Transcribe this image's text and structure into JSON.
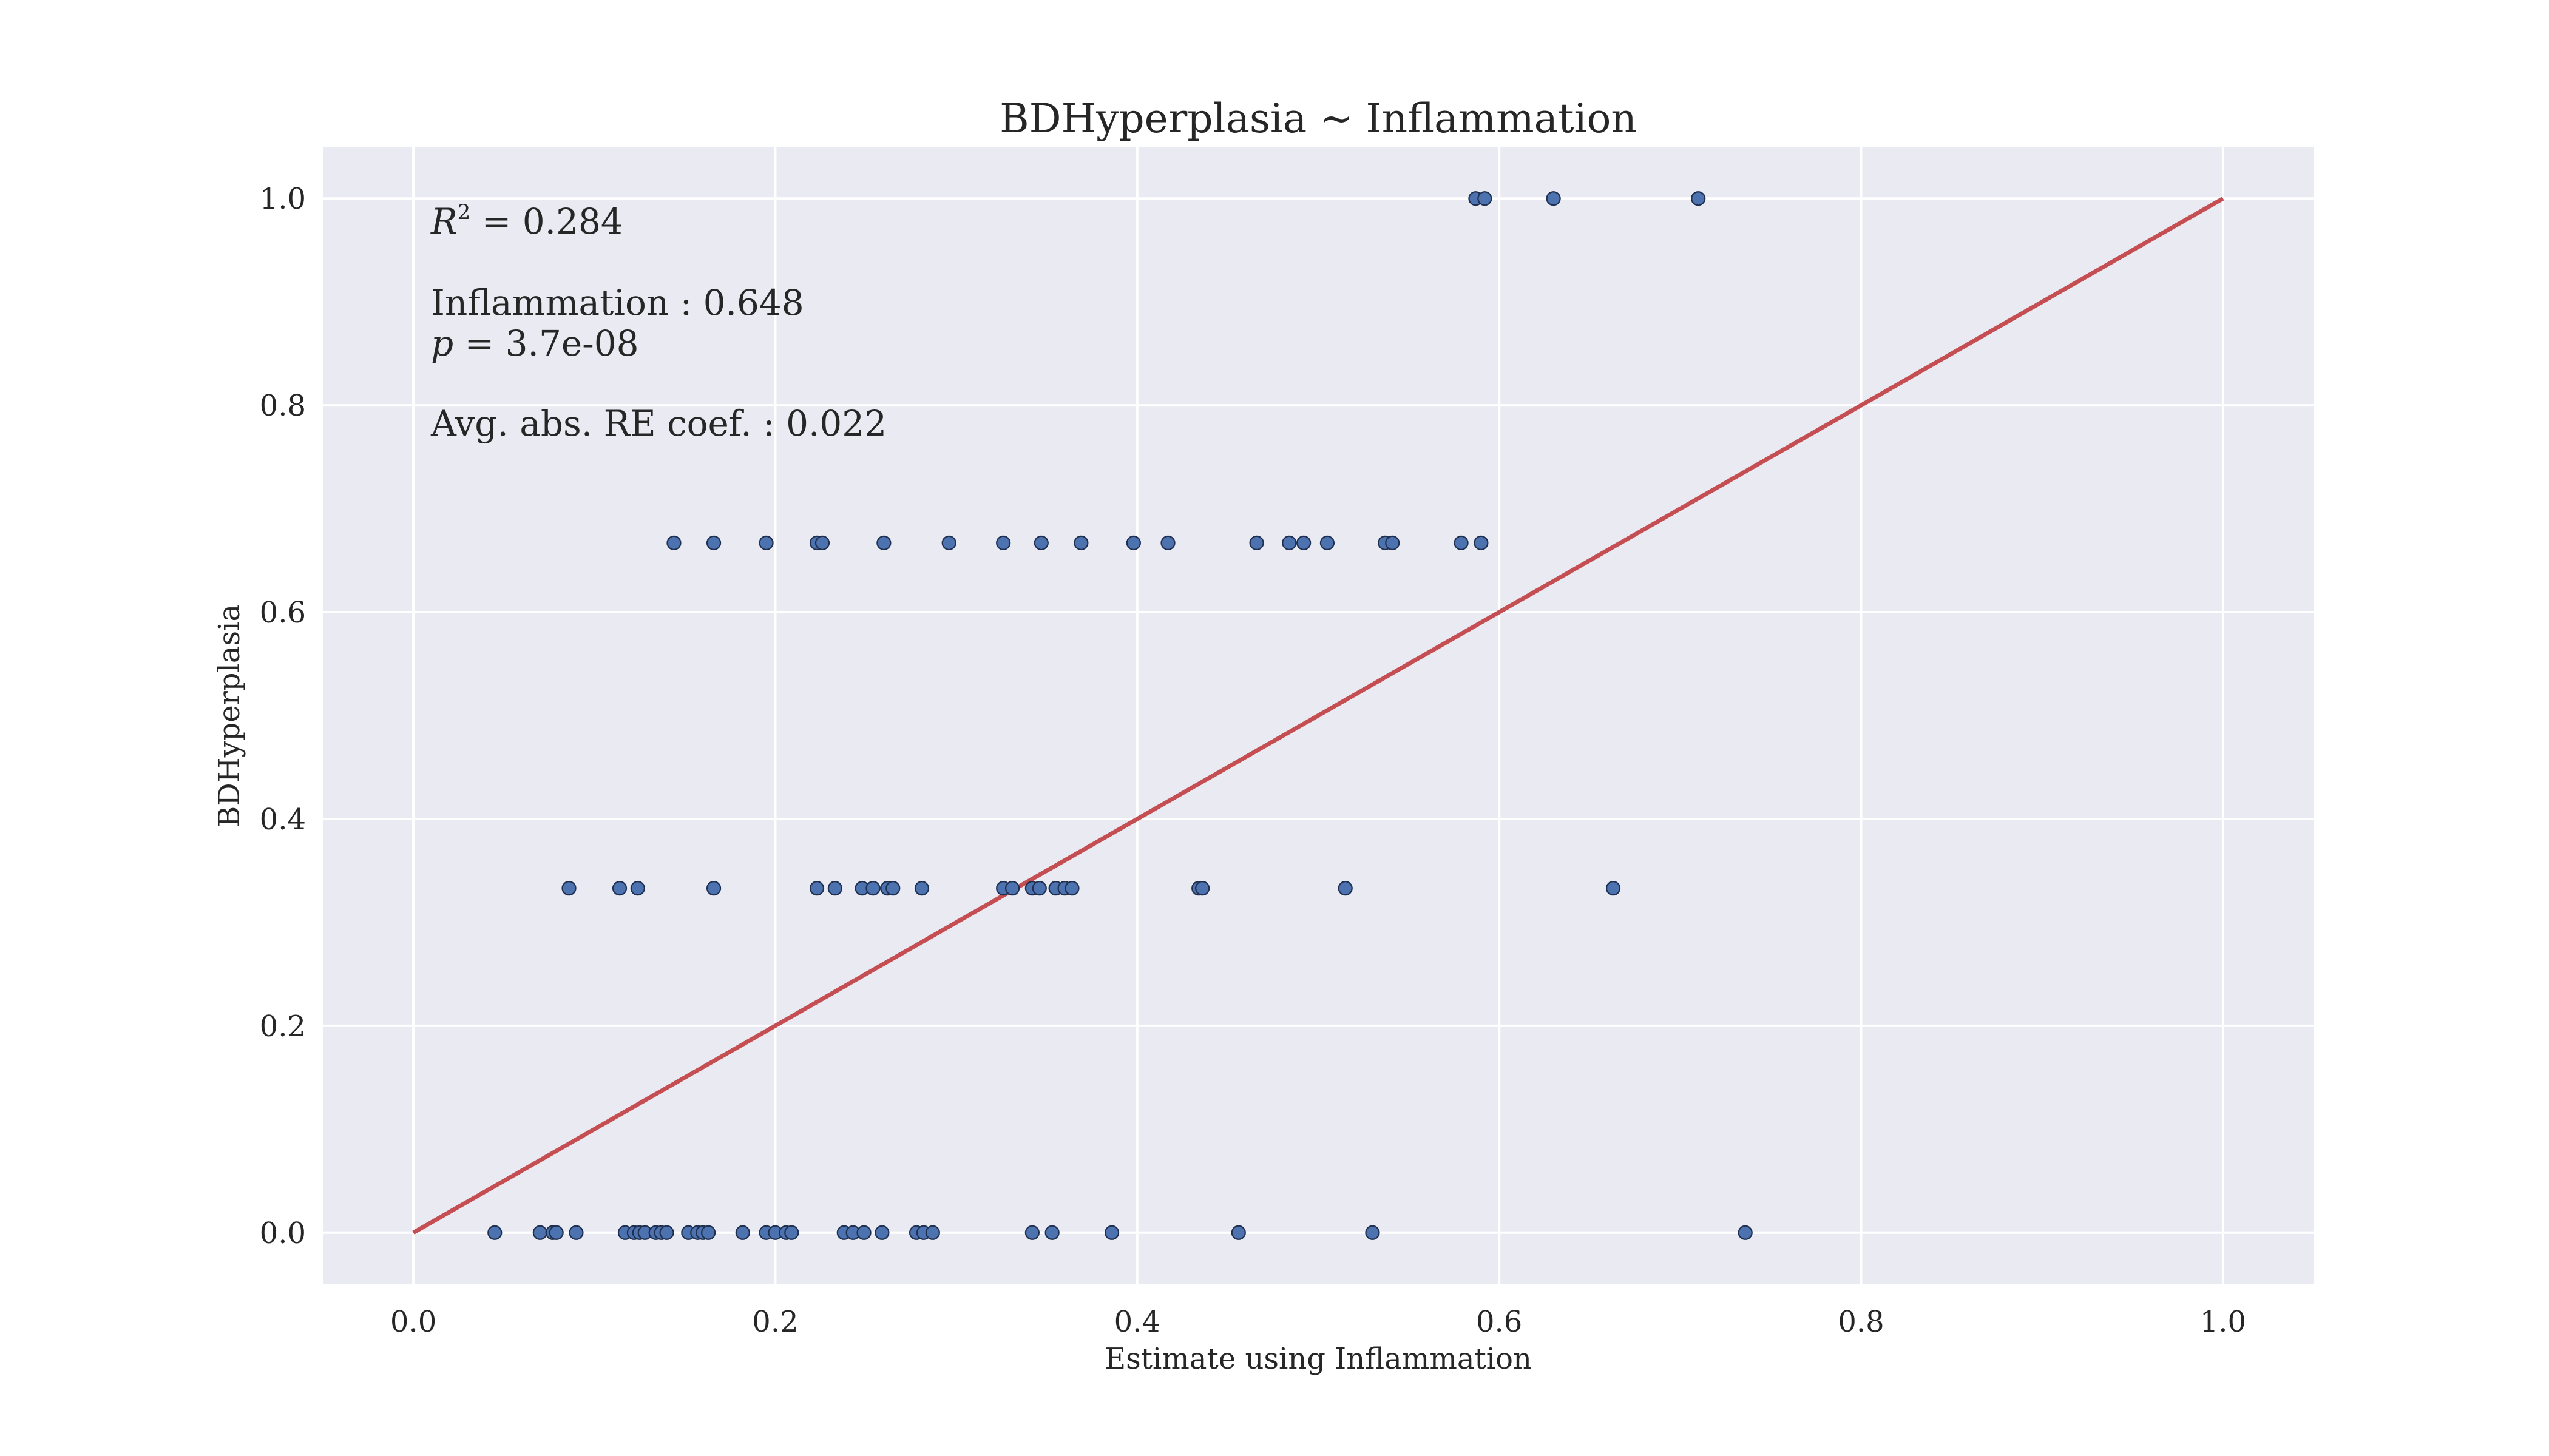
{
  "chart_data": {
    "type": "scatter",
    "title": "BDHyperplasia ~ Inflammation",
    "xlabel": "Estimate using Inflammation",
    "ylabel": "BDHyperplasia",
    "xlim": [
      -0.05,
      1.05
    ],
    "ylim": [
      -0.05,
      1.05
    ],
    "xticks": [
      0.0,
      0.2,
      0.4,
      0.6,
      0.8,
      1.0
    ],
    "yticks": [
      0.0,
      0.2,
      0.4,
      0.6,
      0.8,
      1.0
    ],
    "xtick_labels": [
      "0.0",
      "0.2",
      "0.4",
      "0.6",
      "0.8",
      "1.0"
    ],
    "ytick_labels": [
      "0.0",
      "0.2",
      "0.4",
      "0.6",
      "0.8",
      "1.0"
    ],
    "grid": true,
    "background_color": "#EAEAF2",
    "point_color": "#4C72B0",
    "line_color": "#C44E52",
    "fit_line": {
      "x": [
        0.0,
        1.0
      ],
      "y": [
        0.0,
        1.0
      ]
    },
    "annotations": {
      "r2_symbol": "R",
      "r2_exponent": "2",
      "r2_value": " = 0.284",
      "coef": "Inflammation : 0.648",
      "p_symbol": "p",
      "p_value": " = 3.7e-08",
      "re_coef": "Avg. abs. RE coef. : 0.022"
    },
    "points": [
      {
        "x": 0.045,
        "y": 0.0
      },
      {
        "x": 0.07,
        "y": 0.0
      },
      {
        "x": 0.077,
        "y": 0.0
      },
      {
        "x": 0.079,
        "y": 0.0
      },
      {
        "x": 0.09,
        "y": 0.0
      },
      {
        "x": 0.117,
        "y": 0.0
      },
      {
        "x": 0.122,
        "y": 0.0
      },
      {
        "x": 0.125,
        "y": 0.0
      },
      {
        "x": 0.128,
        "y": 0.0
      },
      {
        "x": 0.134,
        "y": 0.0
      },
      {
        "x": 0.137,
        "y": 0.0
      },
      {
        "x": 0.14,
        "y": 0.0
      },
      {
        "x": 0.152,
        "y": 0.0
      },
      {
        "x": 0.157,
        "y": 0.0
      },
      {
        "x": 0.16,
        "y": 0.0
      },
      {
        "x": 0.163,
        "y": 0.0
      },
      {
        "x": 0.182,
        "y": 0.0
      },
      {
        "x": 0.195,
        "y": 0.0
      },
      {
        "x": 0.2,
        "y": 0.0
      },
      {
        "x": 0.206,
        "y": 0.0
      },
      {
        "x": 0.209,
        "y": 0.0
      },
      {
        "x": 0.238,
        "y": 0.0
      },
      {
        "x": 0.243,
        "y": 0.0
      },
      {
        "x": 0.249,
        "y": 0.0
      },
      {
        "x": 0.259,
        "y": 0.0
      },
      {
        "x": 0.278,
        "y": 0.0
      },
      {
        "x": 0.282,
        "y": 0.0
      },
      {
        "x": 0.287,
        "y": 0.0
      },
      {
        "x": 0.342,
        "y": 0.0
      },
      {
        "x": 0.353,
        "y": 0.0
      },
      {
        "x": 0.386,
        "y": 0.0
      },
      {
        "x": 0.456,
        "y": 0.0
      },
      {
        "x": 0.53,
        "y": 0.0
      },
      {
        "x": 0.736,
        "y": 0.0
      },
      {
        "x": 0.086,
        "y": 0.333
      },
      {
        "x": 0.114,
        "y": 0.333
      },
      {
        "x": 0.124,
        "y": 0.333
      },
      {
        "x": 0.166,
        "y": 0.333
      },
      {
        "x": 0.223,
        "y": 0.333
      },
      {
        "x": 0.233,
        "y": 0.333
      },
      {
        "x": 0.248,
        "y": 0.333
      },
      {
        "x": 0.254,
        "y": 0.333
      },
      {
        "x": 0.262,
        "y": 0.333
      },
      {
        "x": 0.265,
        "y": 0.333
      },
      {
        "x": 0.281,
        "y": 0.333
      },
      {
        "x": 0.326,
        "y": 0.333
      },
      {
        "x": 0.331,
        "y": 0.333
      },
      {
        "x": 0.342,
        "y": 0.333
      },
      {
        "x": 0.346,
        "y": 0.333
      },
      {
        "x": 0.355,
        "y": 0.333
      },
      {
        "x": 0.36,
        "y": 0.333
      },
      {
        "x": 0.364,
        "y": 0.333
      },
      {
        "x": 0.434,
        "y": 0.333
      },
      {
        "x": 0.436,
        "y": 0.333
      },
      {
        "x": 0.515,
        "y": 0.333
      },
      {
        "x": 0.663,
        "y": 0.333
      },
      {
        "x": 0.144,
        "y": 0.667
      },
      {
        "x": 0.166,
        "y": 0.667
      },
      {
        "x": 0.195,
        "y": 0.667
      },
      {
        "x": 0.223,
        "y": 0.667
      },
      {
        "x": 0.226,
        "y": 0.667
      },
      {
        "x": 0.26,
        "y": 0.667
      },
      {
        "x": 0.296,
        "y": 0.667
      },
      {
        "x": 0.326,
        "y": 0.667
      },
      {
        "x": 0.347,
        "y": 0.667
      },
      {
        "x": 0.369,
        "y": 0.667
      },
      {
        "x": 0.398,
        "y": 0.667
      },
      {
        "x": 0.417,
        "y": 0.667
      },
      {
        "x": 0.466,
        "y": 0.667
      },
      {
        "x": 0.484,
        "y": 0.667
      },
      {
        "x": 0.492,
        "y": 0.667
      },
      {
        "x": 0.505,
        "y": 0.667
      },
      {
        "x": 0.537,
        "y": 0.667
      },
      {
        "x": 0.541,
        "y": 0.667
      },
      {
        "x": 0.579,
        "y": 0.667
      },
      {
        "x": 0.59,
        "y": 0.667
      },
      {
        "x": 0.587,
        "y": 1.0
      },
      {
        "x": 0.592,
        "y": 1.0
      },
      {
        "x": 0.63,
        "y": 1.0
      },
      {
        "x": 0.71,
        "y": 1.0
      }
    ]
  }
}
